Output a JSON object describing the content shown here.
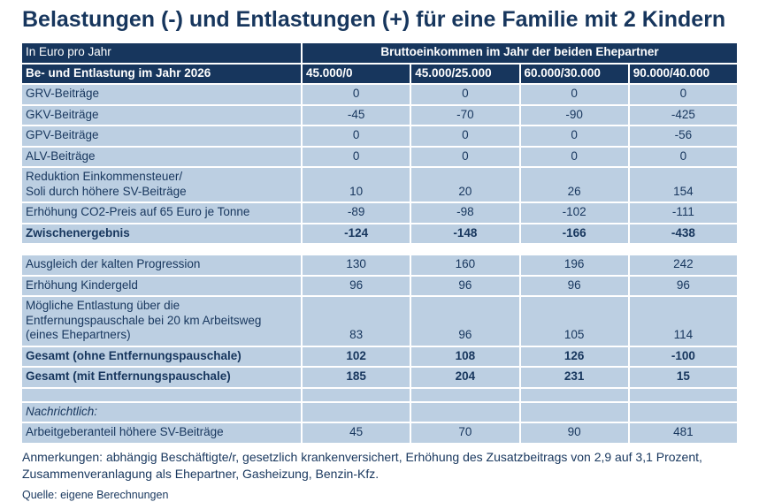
{
  "title": "Belastungen (-) und Entlastungen (+) für eine Familie mit 2 Kindern",
  "chart_data": {
    "type": "table",
    "title": "Belastungen (-) und Entlastungen (+) für eine Familie mit 2 Kindern",
    "unit_label": "In Euro pro Jahr",
    "column_group_header": "Bruttoeinkommen im Jahr der beiden Ehepartner",
    "row_header_label": "Be- und Entlastung im Jahr 2026",
    "columns": [
      "45.000/0",
      "45.000/25.000",
      "60.000/30.000",
      "90.000/40.000"
    ],
    "rows": [
      {
        "label": "GRV-Beiträge",
        "values": [
          "0",
          "0",
          "0",
          "0"
        ],
        "style": "normal"
      },
      {
        "label": "GKV-Beiträge",
        "values": [
          "-45",
          "-70",
          "-90",
          "-425"
        ],
        "style": "normal"
      },
      {
        "label": "GPV-Beiträge",
        "values": [
          "0",
          "0",
          "0",
          "-56"
        ],
        "style": "normal"
      },
      {
        "label": "ALV-Beiträge",
        "values": [
          "0",
          "0",
          "0",
          "0"
        ],
        "style": "normal"
      },
      {
        "label": "Reduktion Einkommensteuer/\nSoli durch höhere SV-Beiträge",
        "values": [
          "10",
          "20",
          "26",
          "154"
        ],
        "style": "normal"
      },
      {
        "label": "Erhöhung CO2-Preis auf 65 Euro je Tonne",
        "values": [
          "-89",
          "-98",
          "-102",
          "-111"
        ],
        "style": "normal"
      },
      {
        "label": "Zwischenergebnis",
        "values": [
          "-124",
          "-148",
          "-166",
          "-438"
        ],
        "style": "bold"
      },
      {
        "label": "",
        "values": [
          "",
          "",
          "",
          ""
        ],
        "style": "spacer"
      },
      {
        "label": "Ausgleich der kalten Progression",
        "values": [
          "130",
          "160",
          "196",
          "242"
        ],
        "style": "normal"
      },
      {
        "label": "Erhöhung Kindergeld",
        "values": [
          "96",
          "96",
          "96",
          "96"
        ],
        "style": "normal"
      },
      {
        "label": "Mögliche Entlastung über die\nEntfernungspauschale bei 20 km Arbeitsweg\n(eines Ehepartners)",
        "values": [
          "83",
          "96",
          "105",
          "114"
        ],
        "style": "normal"
      },
      {
        "label": "Gesamt (ohne Entfernungspauschale)",
        "values": [
          "102",
          "108",
          "126",
          "-100"
        ],
        "style": "bold"
      },
      {
        "label": "Gesamt (mit Entfernungspauschale)",
        "values": [
          "185",
          "204",
          "231",
          "15"
        ],
        "style": "bold"
      },
      {
        "label": "",
        "values": [
          "",
          "",
          "",
          ""
        ],
        "style": "empty"
      },
      {
        "label": "Nachrichtlich:",
        "values": [
          "",
          "",
          "",
          ""
        ],
        "style": "italic"
      },
      {
        "label": "Arbeitgeberanteil höhere SV-Beiträge",
        "values": [
          "45",
          "70",
          "90",
          "481"
        ],
        "style": "normal"
      }
    ]
  },
  "notes": {
    "remarks": "Anmerkungen: abhängig Beschäftigte/r, gesetzlich krankenversichert, Erhöhung des Zusatzbeitrags von 2,9 auf 3,1 Prozent, Zusammenveranlagung als Ehepartner, Gasheizung, Benzin-Kfz.",
    "source": "Quelle: eigene Berechnungen"
  },
  "colors": {
    "navy": "#17365d",
    "row_blue": "#bccfe2",
    "header_text": "#ffffff"
  }
}
